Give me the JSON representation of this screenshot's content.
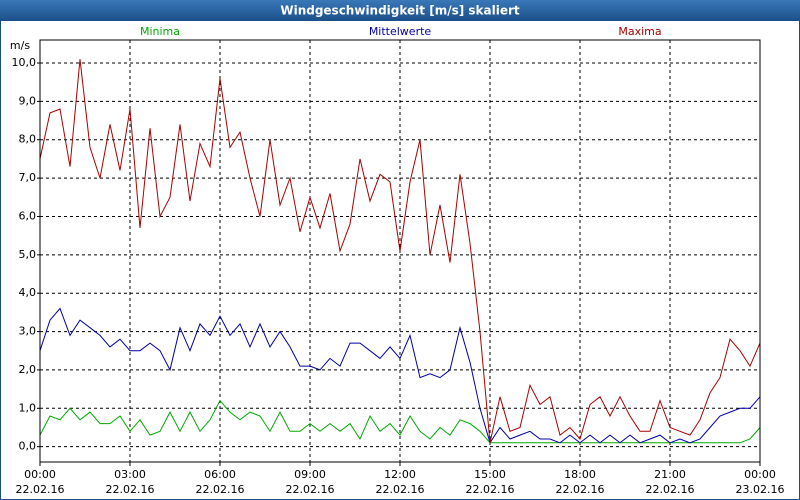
{
  "chart_data": {
    "type": "line",
    "title": "Windgeschwindigkeit [m/s] skaliert",
    "ylabel": "m/s",
    "x": [
      0,
      20,
      40,
      60,
      80,
      100,
      120,
      140,
      160,
      180,
      200,
      220,
      240,
      260,
      280,
      300,
      320,
      340,
      360,
      380,
      400,
      420,
      440,
      460,
      480,
      500,
      520,
      540,
      560,
      580,
      600,
      620,
      640,
      660,
      680,
      700,
      720,
      740,
      760,
      780,
      800,
      820,
      840,
      860,
      880,
      900,
      920,
      940,
      960,
      980,
      1000,
      1020,
      1040,
      1060,
      1080,
      1100,
      1120,
      1140,
      1160,
      1180,
      1200,
      1220,
      1240,
      1260,
      1280,
      1300,
      1320,
      1340,
      1360,
      1380,
      1400,
      1420,
      1440
    ],
    "series": [
      {
        "name": "Minima",
        "color": "#00aa00",
        "values": [
          0.3,
          0.8,
          0.7,
          1.0,
          0.7,
          0.9,
          0.6,
          0.6,
          0.8,
          0.4,
          0.7,
          0.3,
          0.4,
          0.9,
          0.4,
          0.9,
          0.4,
          0.7,
          1.2,
          0.9,
          0.7,
          0.9,
          0.8,
          0.4,
          0.9,
          0.4,
          0.4,
          0.6,
          0.4,
          0.6,
          0.4,
          0.6,
          0.2,
          0.8,
          0.4,
          0.6,
          0.3,
          0.8,
          0.4,
          0.2,
          0.5,
          0.3,
          0.7,
          0.6,
          0.4,
          0.1,
          0.1,
          0.1,
          0.1,
          0.1,
          0.1,
          0.1,
          0.1,
          0.1,
          0.1,
          0.1,
          0.1,
          0.1,
          0.1,
          0.1,
          0.1,
          0.1,
          0.1,
          0.1,
          0.1,
          0.1,
          0.1,
          0.1,
          0.1,
          0.1,
          0.1,
          0.2,
          0.5
        ]
      },
      {
        "name": "Mittelwerte",
        "color": "#0000aa",
        "values": [
          2.5,
          3.3,
          3.6,
          2.9,
          3.3,
          3.1,
          2.9,
          2.6,
          2.8,
          2.5,
          2.5,
          2.7,
          2.5,
          2.0,
          3.1,
          2.5,
          3.2,
          2.9,
          3.4,
          2.9,
          3.2,
          2.6,
          3.2,
          2.6,
          3.0,
          2.6,
          2.1,
          2.1,
          2.0,
          2.3,
          2.1,
          2.7,
          2.7,
          2.5,
          2.3,
          2.6,
          2.3,
          2.9,
          1.8,
          1.9,
          1.8,
          2.0,
          3.1,
          2.2,
          1.0,
          0.1,
          0.5,
          0.2,
          0.3,
          0.4,
          0.2,
          0.2,
          0.1,
          0.3,
          0.1,
          0.3,
          0.1,
          0.3,
          0.1,
          0.3,
          0.1,
          0.2,
          0.3,
          0.1,
          0.2,
          0.1,
          0.2,
          0.5,
          0.8,
          0.9,
          1.0,
          1.0,
          1.3
        ]
      },
      {
        "name": "Maxima",
        "color": "#aa0000",
        "values": [
          7.5,
          8.7,
          8.8,
          7.3,
          10.1,
          7.8,
          7.0,
          8.4,
          7.2,
          8.8,
          5.7,
          8.3,
          6.0,
          6.5,
          8.4,
          6.4,
          7.9,
          7.3,
          9.6,
          7.8,
          8.2,
          7.0,
          6.0,
          8.0,
          6.3,
          7.0,
          5.6,
          6.5,
          5.7,
          6.6,
          5.1,
          5.8,
          7.5,
          6.4,
          7.1,
          6.9,
          5.1,
          6.9,
          8.0,
          5.0,
          6.3,
          4.8,
          7.1,
          5.3,
          3.0,
          0.1,
          1.3,
          0.4,
          0.5,
          1.6,
          1.1,
          1.3,
          0.3,
          0.5,
          0.2,
          1.1,
          1.3,
          0.8,
          1.3,
          0.8,
          0.4,
          0.4,
          1.2,
          0.5,
          0.4,
          0.3,
          0.7,
          1.4,
          1.8,
          2.8,
          2.5,
          2.1,
          2.7
        ]
      }
    ],
    "xlim": [
      0,
      1440
    ],
    "xticks": [
      {
        "value": 0,
        "label": "00:00",
        "date": "22.02.16"
      },
      {
        "value": 180,
        "label": "03:00",
        "date": "22.02.16"
      },
      {
        "value": 360,
        "label": "06:00",
        "date": "22.02.16"
      },
      {
        "value": 540,
        "label": "09:00",
        "date": "22.02.16"
      },
      {
        "value": 720,
        "label": "12:00",
        "date": "22.02.16"
      },
      {
        "value": 900,
        "label": "15:00",
        "date": "22.02.16"
      },
      {
        "value": 1080,
        "label": "18:00",
        "date": "22.02.16"
      },
      {
        "value": 1260,
        "label": "21:00",
        "date": "22.02.16"
      },
      {
        "value": 1440,
        "label": "00:00",
        "date": "23.02.16"
      }
    ],
    "ylim": [
      -0.4,
      10.6
    ],
    "yticks": [
      {
        "value": 0,
        "label": "0,0"
      },
      {
        "value": 1,
        "label": "1,0"
      },
      {
        "value": 2,
        "label": "2,0"
      },
      {
        "value": 3,
        "label": "3,0"
      },
      {
        "value": 4,
        "label": "4,0"
      },
      {
        "value": 5,
        "label": "5,0"
      },
      {
        "value": 6,
        "label": "6,0"
      },
      {
        "value": 7,
        "label": "7,0"
      },
      {
        "value": 8,
        "label": "8,0"
      },
      {
        "value": 9,
        "label": "9,0"
      },
      {
        "value": 10,
        "label": "10,0"
      }
    ],
    "grid": true
  }
}
